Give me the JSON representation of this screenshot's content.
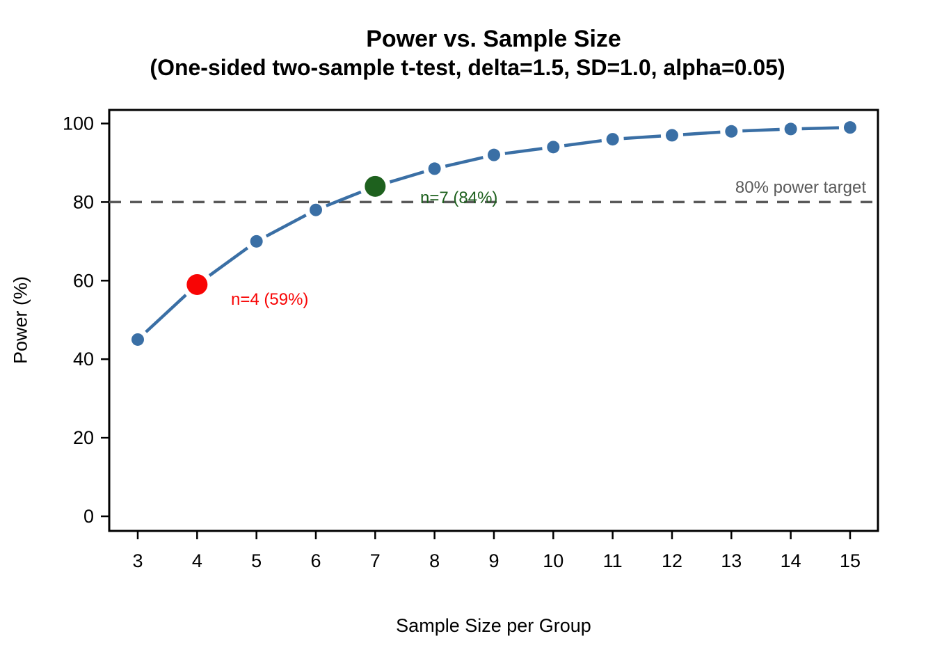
{
  "chart_data": {
    "type": "line",
    "title": "Power vs. Sample Size",
    "subtitle": "(One-sided two-sample t-test, delta=1.5, SD=1.0, alpha=0.05)",
    "xlabel": "Sample Size per Group",
    "ylabel": "Power (%)",
    "x": [
      3,
      4,
      5,
      6,
      7,
      8,
      9,
      10,
      11,
      12,
      13,
      14,
      15
    ],
    "values": [
      45,
      59,
      70,
      78,
      84,
      88.5,
      92,
      94,
      96,
      97,
      98,
      98.6,
      99
    ],
    "xticks": [
      3,
      4,
      5,
      6,
      7,
      8,
      9,
      10,
      11,
      12,
      13,
      14,
      15
    ],
    "yticks": [
      0,
      20,
      40,
      60,
      80,
      100
    ],
    "ylim": [
      0,
      100
    ],
    "grid": false,
    "legend": "none",
    "line_color": "#3A6FA5",
    "point_color": "#3A6FA5",
    "frame_color": "#000000",
    "reference_line": {
      "y": 80,
      "label": "80% power target",
      "color": "#595959",
      "style": "dashed"
    },
    "highlights": [
      {
        "x": 4,
        "value": 59,
        "label": "n=4 (59%)",
        "color": "#F80505"
      },
      {
        "x": 7,
        "value": 84,
        "label": "n=7 (84%)",
        "color": "#1E611E"
      }
    ]
  }
}
